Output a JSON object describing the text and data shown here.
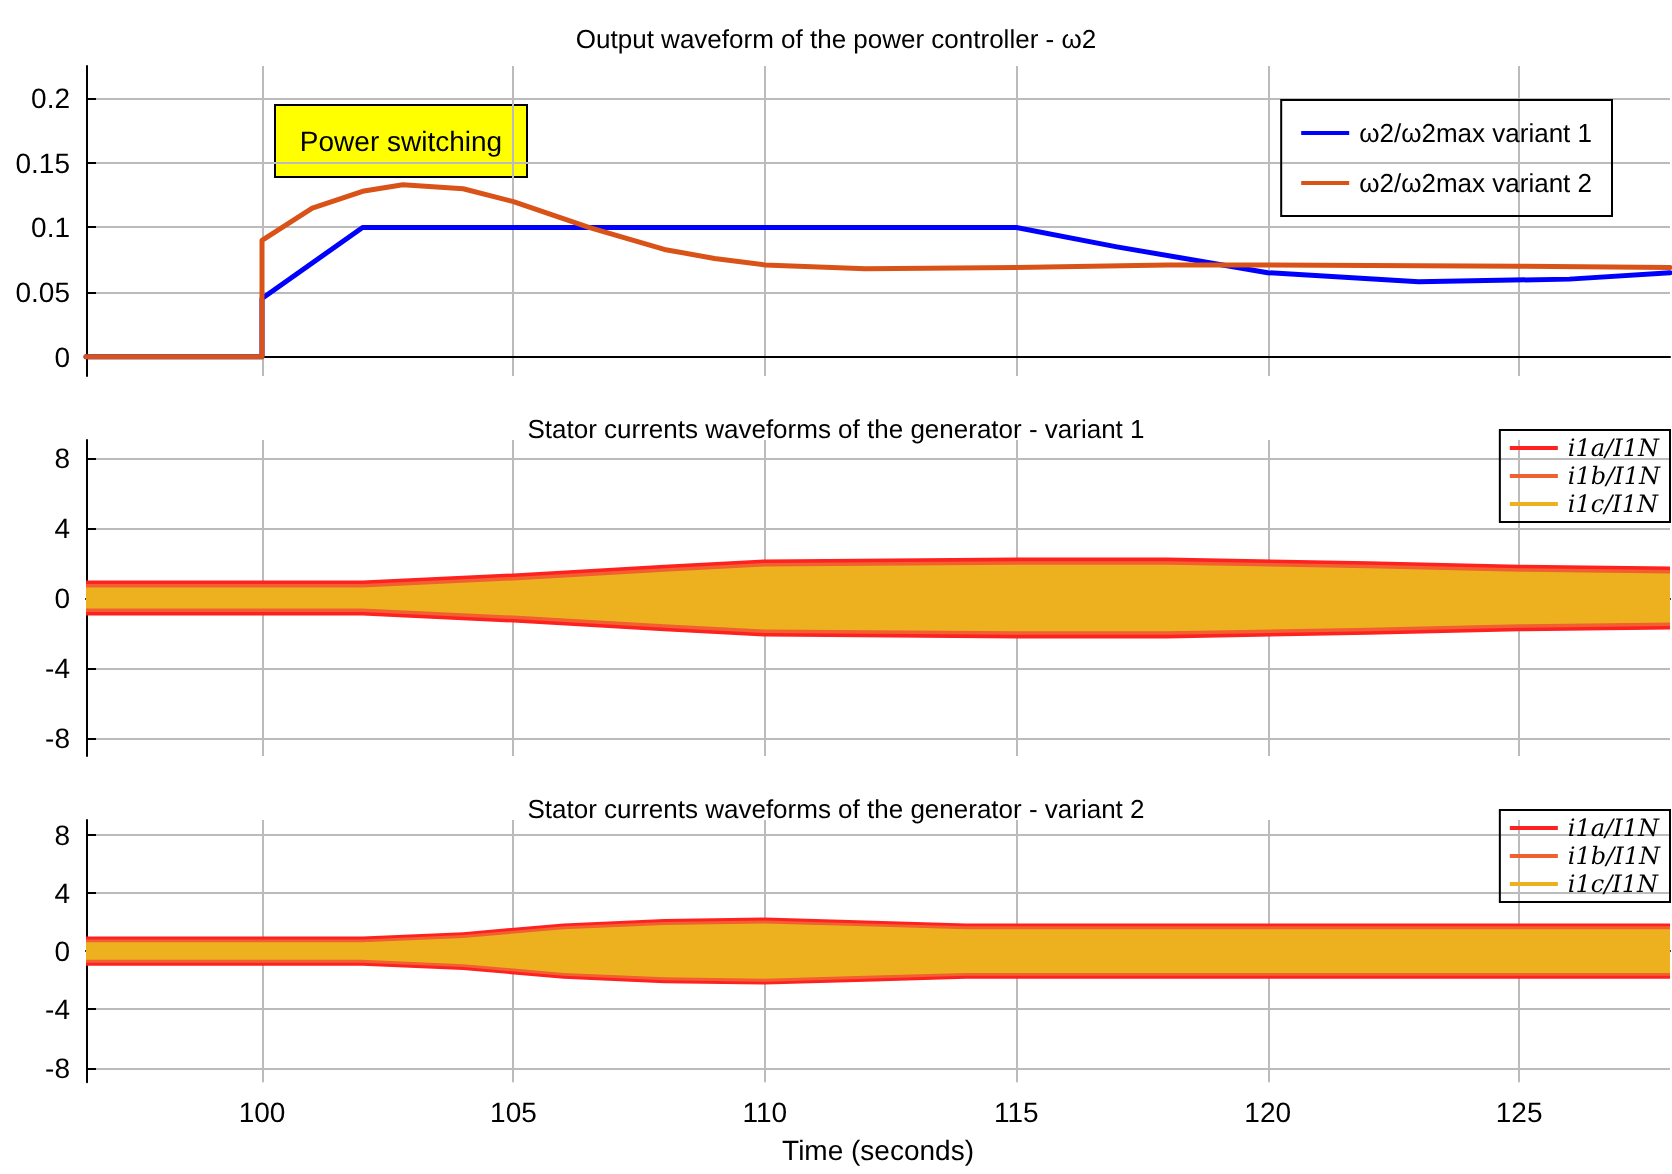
{
  "chart_data": [
    {
      "type": "line",
      "title": "Output waveform of the power controller - ω2",
      "annotations": [
        "Power switching"
      ],
      "xlim": [
        96.5,
        128
      ],
      "xticks": [
        100,
        105,
        110,
        115,
        120,
        125
      ],
      "ylim": [
        -0.015,
        0.225
      ],
      "yticks": [
        0,
        0.05,
        0.1,
        0.15,
        0.2
      ],
      "grid": true,
      "legend": "top right",
      "marker": "none",
      "tick_labels": "y",
      "series": [
        {
          "name": "ω2/ω2max variant 1",
          "color": "#0000ff",
          "x": [
            96.5,
            100,
            100,
            102,
            115,
            117,
            120,
            123,
            126,
            128
          ],
          "values": [
            0,
            0,
            0.045,
            0.1,
            0.1,
            0.085,
            0.065,
            0.058,
            0.06,
            0.065
          ]
        },
        {
          "name": "ω2/ω2max variant 2",
          "color": "#d95319",
          "x": [
            96.5,
            100,
            100,
            101,
            102,
            102.8,
            104,
            105,
            106.5,
            108,
            109,
            110,
            112,
            115,
            118,
            120,
            125,
            128
          ],
          "values": [
            0,
            0,
            0.09,
            0.115,
            0.128,
            0.133,
            0.13,
            0.12,
            0.1,
            0.083,
            0.076,
            0.071,
            0.068,
            0.069,
            0.071,
            0.071,
            0.07,
            0.069
          ]
        }
      ]
    },
    {
      "type": "line",
      "title": "Stator currents waveforms of the generator - variant 1",
      "xlim": [
        96.5,
        128
      ],
      "xticks": [
        100,
        105,
        110,
        115,
        120,
        125
      ],
      "ylim": [
        -9,
        9
      ],
      "yticks": [
        -8,
        -4,
        0,
        4,
        8
      ],
      "grid": true,
      "legend": "top right",
      "marker": "none",
      "tick_labels": "y",
      "series": [
        {
          "name": "i1a/I1N",
          "color": "#ff2020",
          "x": [
            96.5,
            102,
            105,
            108,
            110,
            115,
            118,
            122,
            125,
            128
          ],
          "values": [
            null,
            null,
            null,
            null,
            null,
            null,
            null,
            null,
            null,
            null
          ],
          "lower": [
            -1,
            -1,
            -1.4,
            -1.9,
            -2.2,
            -2.3,
            -2.3,
            -2.1,
            -1.9,
            -1.8
          ],
          "upper": [
            1,
            1,
            1.4,
            1.9,
            2.2,
            2.3,
            2.3,
            2.1,
            1.9,
            1.8
          ]
        },
        {
          "name": "i1b/I1N",
          "color": "#f06030",
          "x": [
            96.5,
            102,
            105,
            108,
            110,
            115,
            118,
            122,
            125,
            128
          ],
          "values": [
            null,
            null,
            null,
            null,
            null,
            null,
            null,
            null,
            null,
            null
          ],
          "lower": [
            -0.8,
            -0.8,
            -1.2,
            -1.7,
            -2,
            -2.1,
            -2.1,
            -1.9,
            -1.7,
            -1.6
          ],
          "upper": [
            0.8,
            0.8,
            1.2,
            1.7,
            2,
            2.1,
            2.1,
            1.9,
            1.7,
            1.6
          ]
        },
        {
          "name": "i1c/I1N",
          "color": "#edb120",
          "x": [
            96.5,
            102,
            105,
            108,
            110,
            115,
            118,
            122,
            125,
            128
          ],
          "values": [
            null,
            null,
            null,
            null,
            null,
            null,
            null,
            null,
            null,
            null
          ],
          "lower": [
            -0.6,
            -0.6,
            -1,
            -1.5,
            -1.8,
            -1.9,
            -1.9,
            -1.7,
            -1.5,
            -1.4
          ],
          "upper": [
            0.6,
            0.6,
            1,
            1.5,
            1.8,
            1.9,
            1.9,
            1.7,
            1.5,
            1.4
          ]
        }
      ]
    },
    {
      "type": "line",
      "title": "Stator currents waveforms of the generator - variant 2",
      "xlabel": "Time (seconds)",
      "xlim": [
        96.5,
        128
      ],
      "xticks": [
        100,
        105,
        110,
        115,
        120,
        125
      ],
      "ylim": [
        -9,
        9
      ],
      "yticks": [
        -8,
        -4,
        0,
        4,
        8
      ],
      "grid": true,
      "legend": "top right",
      "marker": "none",
      "series": [
        {
          "name": "i1a/I1N",
          "color": "#ff2020",
          "x": [
            96.5,
            102,
            104,
            106,
            108,
            110,
            112,
            114,
            118,
            122,
            128
          ],
          "values": [
            null,
            null,
            null,
            null,
            null,
            null,
            null,
            null,
            null,
            null,
            null
          ],
          "lower": [
            -1,
            -1,
            -1.3,
            -1.9,
            -2.2,
            -2.3,
            -2.1,
            -1.9,
            -1.9,
            -1.9,
            -1.9
          ],
          "upper": [
            1,
            1,
            1.3,
            1.9,
            2.2,
            2.3,
            2.1,
            1.9,
            1.9,
            1.9,
            1.9
          ]
        },
        {
          "name": "i1b/I1N",
          "color": "#f06030",
          "x": [
            96.5,
            102,
            104,
            106,
            108,
            110,
            112,
            114,
            118,
            122,
            128
          ],
          "values": [
            null,
            null,
            null,
            null,
            null,
            null,
            null,
            null,
            null,
            null,
            null
          ],
          "lower": [
            -0.8,
            -0.8,
            -1.1,
            -1.7,
            -2,
            -2.1,
            -1.9,
            -1.7,
            -1.7,
            -1.7,
            -1.7
          ],
          "upper": [
            0.8,
            0.8,
            1.1,
            1.7,
            2,
            2.1,
            1.9,
            1.7,
            1.7,
            1.7,
            1.7
          ]
        },
        {
          "name": "i1c/I1N",
          "color": "#edb120",
          "x": [
            96.5,
            102,
            104,
            106,
            108,
            110,
            112,
            114,
            118,
            122,
            128
          ],
          "values": [
            null,
            null,
            null,
            null,
            null,
            null,
            null,
            null,
            null,
            null,
            null
          ],
          "lower": [
            -0.6,
            -0.6,
            -0.9,
            -1.5,
            -1.8,
            -1.9,
            -1.7,
            -1.5,
            -1.5,
            -1.5,
            -1.5
          ],
          "upper": [
            0.6,
            0.6,
            0.9,
            1.5,
            1.8,
            1.9,
            1.7,
            1.5,
            1.5,
            1.5,
            1.5
          ]
        }
      ]
    }
  ]
}
